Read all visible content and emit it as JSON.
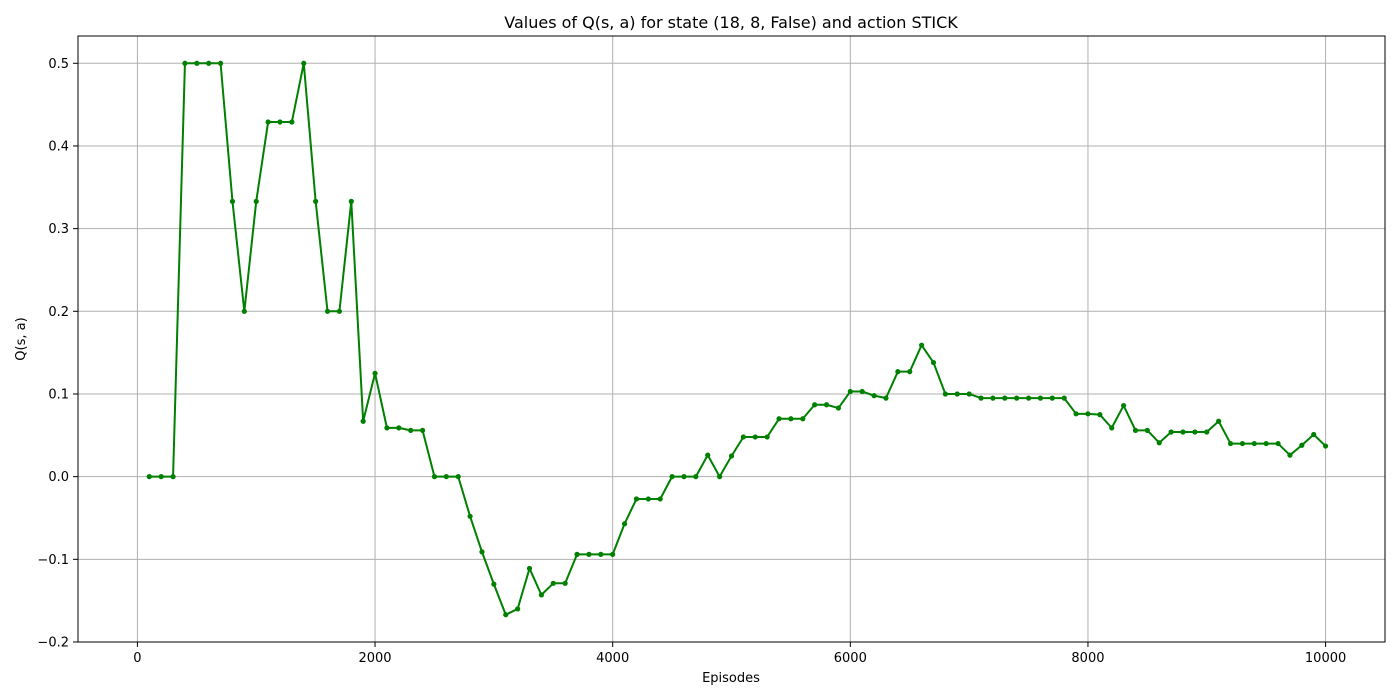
{
  "chart_data": {
    "type": "line",
    "title": "Values of Q(s, a) for state (18, 8, False) and action STICK",
    "xlabel": "Episodes",
    "ylabel": "Q(s, a)",
    "xlim": [
      -500,
      10500
    ],
    "ylim": [
      -0.2,
      0.533
    ],
    "xticks": [
      0,
      2000,
      4000,
      6000,
      8000,
      10000
    ],
    "xtick_labels": [
      "0",
      "2000",
      "4000",
      "6000",
      "8000",
      "10000"
    ],
    "yticks": [
      -0.2,
      -0.1,
      0.0,
      0.1,
      0.2,
      0.3,
      0.4,
      0.5
    ],
    "ytick_labels": [
      "−0.2",
      "−0.1",
      "0.0",
      "0.1",
      "0.2",
      "0.3",
      "0.4",
      "0.5"
    ],
    "grid": true,
    "color": "#008000",
    "marker": "dot",
    "series": [
      {
        "x": [
          100,
          200,
          300,
          400,
          500,
          600,
          700,
          800,
          900,
          1000,
          1100,
          1200,
          1300,
          1400,
          1500,
          1600,
          1700,
          1800,
          1900,
          2000,
          2100,
          2200,
          2300,
          2400,
          2500,
          2600,
          2700,
          2800,
          2900,
          3000,
          3100,
          3200,
          3300,
          3400,
          3500,
          3600,
          3700,
          3800,
          3900,
          4000,
          4100,
          4200,
          4300,
          4400,
          4500,
          4600,
          4700,
          4800,
          4900,
          5000,
          5100,
          5200,
          5300,
          5400,
          5500,
          5600,
          5700,
          5800,
          5900,
          6000,
          6100,
          6200,
          6300,
          6400,
          6500,
          6600,
          6700,
          6800,
          6900,
          7000,
          7100,
          7200,
          7300,
          7400,
          7500,
          7600,
          7700,
          7800,
          7900,
          8000,
          8100,
          8200,
          8300,
          8400,
          8500,
          8600,
          8700,
          8800,
          8900,
          9000,
          9100,
          9200,
          9300,
          9400,
          9500,
          9600,
          9700,
          9800,
          9900,
          10000
        ],
        "values": [
          0.0,
          0.0,
          0.0,
          0.5,
          0.5,
          0.5,
          0.5,
          0.333,
          0.2,
          0.333,
          0.429,
          0.429,
          0.429,
          0.5,
          0.333,
          0.2,
          0.2,
          0.333,
          0.067,
          0.125,
          0.059,
          0.059,
          0.056,
          0.056,
          0.0,
          0.0,
          0.0,
          -0.048,
          -0.091,
          -0.13,
          -0.167,
          -0.16,
          -0.111,
          -0.143,
          -0.129,
          -0.129,
          -0.094,
          -0.094,
          -0.094,
          -0.094,
          -0.057,
          -0.027,
          -0.027,
          -0.027,
          0.0,
          0.0,
          0.0,
          0.026,
          0.0,
          0.025,
          0.048,
          0.048,
          0.048,
          0.07,
          0.07,
          0.07,
          0.087,
          0.087,
          0.083,
          0.103,
          0.103,
          0.098,
          0.095,
          0.127,
          0.127,
          0.159,
          0.138,
          0.1,
          0.1,
          0.1,
          0.095,
          0.095,
          0.095,
          0.095,
          0.095,
          0.095,
          0.095,
          0.095,
          0.076,
          0.076,
          0.075,
          0.059,
          0.086,
          0.056,
          0.056,
          0.041,
          0.054,
          0.054,
          0.054,
          0.054,
          0.067,
          0.04,
          0.04,
          0.04,
          0.04,
          0.04,
          0.026,
          0.038,
          0.051,
          0.037
        ]
      }
    ]
  }
}
